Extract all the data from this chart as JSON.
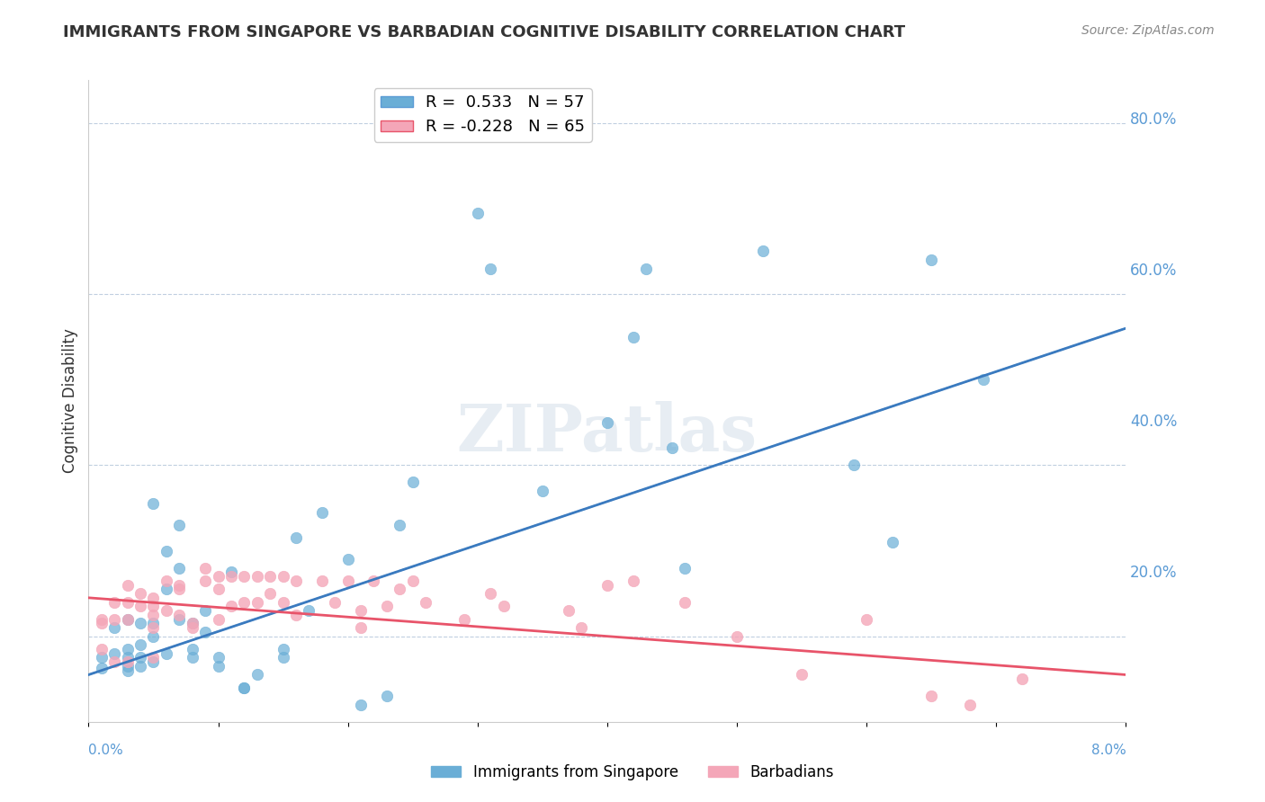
{
  "title": "IMMIGRANTS FROM SINGAPORE VS BARBADIAN COGNITIVE DISABILITY CORRELATION CHART",
  "source": "Source: ZipAtlas.com",
  "ylabel": "Cognitive Disability",
  "right_yticks": [
    0.0,
    0.2,
    0.4,
    0.6,
    0.8
  ],
  "right_yticklabels": [
    "",
    "20.0%",
    "40.0%",
    "60.0%",
    "80.0%"
  ],
  "xlim": [
    0.0,
    0.08
  ],
  "ylim": [
    0.1,
    0.85
  ],
  "blue_color": "#6aaed6",
  "pink_color": "#f4a6b8",
  "blue_line_color": "#3a7abf",
  "pink_line_color": "#e8546a",
  "dashed_line_color": "#9dc3e6",
  "watermark": "ZIPatlas",
  "singapore_scatter_x": [
    0.001,
    0.001,
    0.002,
    0.002,
    0.003,
    0.003,
    0.003,
    0.003,
    0.003,
    0.004,
    0.004,
    0.004,
    0.004,
    0.005,
    0.005,
    0.005,
    0.005,
    0.006,
    0.006,
    0.006,
    0.007,
    0.007,
    0.007,
    0.008,
    0.008,
    0.008,
    0.009,
    0.009,
    0.01,
    0.01,
    0.011,
    0.012,
    0.012,
    0.013,
    0.015,
    0.015,
    0.016,
    0.017,
    0.018,
    0.02,
    0.021,
    0.023,
    0.024,
    0.025,
    0.03,
    0.031,
    0.035,
    0.04,
    0.042,
    0.043,
    0.045,
    0.046,
    0.052,
    0.059,
    0.062,
    0.065,
    0.069
  ],
  "singapore_scatter_y": [
    0.175,
    0.163,
    0.21,
    0.18,
    0.22,
    0.185,
    0.175,
    0.165,
    0.16,
    0.215,
    0.19,
    0.175,
    0.165,
    0.355,
    0.215,
    0.2,
    0.17,
    0.3,
    0.255,
    0.18,
    0.33,
    0.28,
    0.22,
    0.215,
    0.185,
    0.175,
    0.23,
    0.205,
    0.175,
    0.165,
    0.275,
    0.14,
    0.14,
    0.155,
    0.185,
    0.175,
    0.315,
    0.23,
    0.345,
    0.29,
    0.12,
    0.13,
    0.33,
    0.38,
    0.695,
    0.63,
    0.37,
    0.45,
    0.55,
    0.63,
    0.42,
    0.28,
    0.65,
    0.4,
    0.31,
    0.64,
    0.5
  ],
  "barbadian_scatter_x": [
    0.001,
    0.001,
    0.001,
    0.002,
    0.002,
    0.002,
    0.003,
    0.003,
    0.003,
    0.003,
    0.004,
    0.004,
    0.005,
    0.005,
    0.005,
    0.005,
    0.005,
    0.006,
    0.006,
    0.007,
    0.007,
    0.007,
    0.008,
    0.008,
    0.009,
    0.009,
    0.01,
    0.01,
    0.01,
    0.011,
    0.011,
    0.012,
    0.012,
    0.013,
    0.013,
    0.014,
    0.014,
    0.015,
    0.015,
    0.016,
    0.016,
    0.018,
    0.019,
    0.02,
    0.021,
    0.021,
    0.022,
    0.023,
    0.024,
    0.025,
    0.026,
    0.029,
    0.031,
    0.032,
    0.037,
    0.038,
    0.04,
    0.042,
    0.046,
    0.05,
    0.055,
    0.06,
    0.065,
    0.068,
    0.072
  ],
  "barbadian_scatter_y": [
    0.22,
    0.215,
    0.185,
    0.24,
    0.22,
    0.17,
    0.26,
    0.24,
    0.22,
    0.17,
    0.25,
    0.235,
    0.245,
    0.235,
    0.225,
    0.21,
    0.175,
    0.265,
    0.23,
    0.26,
    0.255,
    0.225,
    0.215,
    0.21,
    0.28,
    0.265,
    0.27,
    0.255,
    0.22,
    0.27,
    0.235,
    0.27,
    0.24,
    0.27,
    0.24,
    0.27,
    0.25,
    0.27,
    0.24,
    0.265,
    0.225,
    0.265,
    0.24,
    0.265,
    0.23,
    0.21,
    0.265,
    0.235,
    0.255,
    0.265,
    0.24,
    0.22,
    0.25,
    0.235,
    0.23,
    0.21,
    0.26,
    0.265,
    0.24,
    0.2,
    0.155,
    0.22,
    0.13,
    0.12,
    0.15
  ],
  "blue_trend_x": [
    0.0,
    0.08
  ],
  "blue_trend_y": [
    0.155,
    0.56
  ],
  "pink_trend_x": [
    0.0,
    0.08
  ],
  "pink_trend_y": [
    0.245,
    0.155
  ],
  "dashed_trend_x": [
    0.0,
    0.08
  ],
  "dashed_trend_y": [
    0.155,
    0.56
  ]
}
